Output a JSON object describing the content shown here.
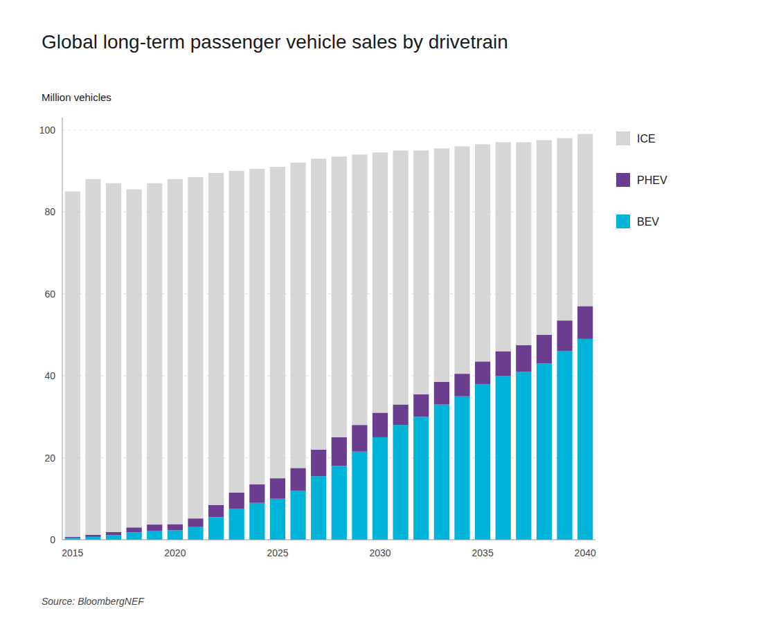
{
  "chart_data": {
    "type": "bar",
    "title": "Global long-term passenger vehicle sales by drivetrain",
    "ylabel": "Million vehicles",
    "annotations": [
      "Source: BloombergNEF"
    ],
    "stacked": true,
    "grid": true,
    "legend": "upper right",
    "categories": [
      "2015",
      null,
      null,
      null,
      null,
      "2020",
      null,
      null,
      null,
      null,
      "2025",
      null,
      null,
      null,
      null,
      "2030",
      null,
      null,
      null,
      null,
      "2035",
      null,
      null,
      null,
      null,
      "2040"
    ],
    "series": [
      {
        "name": "BEV",
        "color": "#00b3d9",
        "values": [
          0.4,
          0.7,
          1.1,
          1.8,
          2.2,
          2.3,
          3.2,
          5.5,
          7.5,
          9.0,
          10.0,
          12.0,
          15.5,
          18.0,
          21.5,
          25.0,
          28.0,
          30.0,
          33.0,
          35.0,
          38.0,
          40.0,
          41.0,
          43.0,
          46.0,
          49.0
        ]
      },
      {
        "name": "PHEV",
        "color": "#6a3d8f",
        "values": [
          0.3,
          0.5,
          0.8,
          1.2,
          1.5,
          1.5,
          2.0,
          3.0,
          4.0,
          4.5,
          5.0,
          5.5,
          6.5,
          7.0,
          6.5,
          6.0,
          5.0,
          5.5,
          5.5,
          5.5,
          5.5,
          6.0,
          6.5,
          7.0,
          7.5,
          8.0
        ]
      },
      {
        "name": "ICE",
        "color": "#d6d6d6",
        "values": [
          84.3,
          86.8,
          85.1,
          82.5,
          83.3,
          84.2,
          83.3,
          81.0,
          78.5,
          77.0,
          76.0,
          74.5,
          71.0,
          68.5,
          66.0,
          63.5,
          62.0,
          59.5,
          57.0,
          55.5,
          53.0,
          51.0,
          49.5,
          47.5,
          44.5,
          42.0
        ]
      }
    ],
    "ylim": [
      0,
      103
    ],
    "yticks": [
      0,
      20,
      40,
      60,
      80,
      100
    ]
  }
}
